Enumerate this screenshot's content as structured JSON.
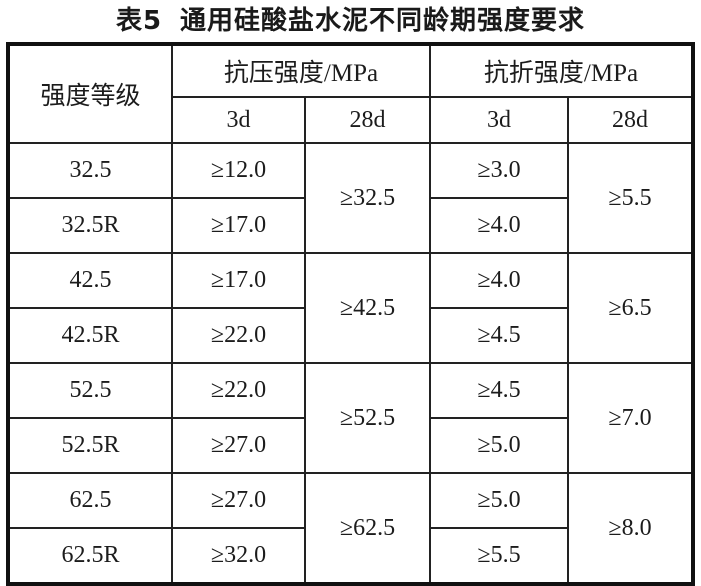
{
  "title": {
    "label": "表5",
    "text": "通用硅酸盐水泥不同龄期强度要求"
  },
  "table": {
    "header": {
      "grade": "强度等级",
      "compressive": "抗压强度/MPa",
      "flexural": "抗折强度/MPa",
      "comp_3d": "3d",
      "comp_28d": "28d",
      "flex_3d": "3d",
      "flex_28d": "28d"
    },
    "groups": [
      {
        "grade_a": "32.5",
        "grade_b": "32.5R",
        "comp3d_a": "≥12.0",
        "comp3d_b": "≥17.0",
        "comp28d": "≥32.5",
        "flex3d_a": "≥3.0",
        "flex3d_b": "≥4.0",
        "flex28d": "≥5.5"
      },
      {
        "grade_a": "42.5",
        "grade_b": "42.5R",
        "comp3d_a": "≥17.0",
        "comp3d_b": "≥22.0",
        "comp28d": "≥42.5",
        "flex3d_a": "≥4.0",
        "flex3d_b": "≥4.5",
        "flex28d": "≥6.5"
      },
      {
        "grade_a": "52.5",
        "grade_b": "52.5R",
        "comp3d_a": "≥22.0",
        "comp3d_b": "≥27.0",
        "comp28d": "≥52.5",
        "flex3d_a": "≥4.5",
        "flex3d_b": "≥5.0",
        "flex28d": "≥7.0"
      },
      {
        "grade_a": "62.5",
        "grade_b": "62.5R",
        "comp3d_a": "≥27.0",
        "comp3d_b": "≥32.0",
        "comp28d": "≥62.5",
        "flex3d_a": "≥5.0",
        "flex3d_b": "≥5.5",
        "flex28d": "≥8.0"
      }
    ]
  },
  "chart_data": {
    "type": "table",
    "title": "表5 通用硅酸盐水泥不同龄期强度要求",
    "columns": [
      "强度等级",
      "抗压强度/MPa 3d",
      "抗压强度/MPa 28d",
      "抗折强度/MPa 3d",
      "抗折强度/MPa 28d"
    ],
    "rows": [
      [
        "32.5",
        "≥12.0",
        "≥32.5",
        "≥3.0",
        "≥5.5"
      ],
      [
        "32.5R",
        "≥17.0",
        "≥32.5",
        "≥4.0",
        "≥5.5"
      ],
      [
        "42.5",
        "≥17.0",
        "≥42.5",
        "≥4.0",
        "≥6.5"
      ],
      [
        "42.5R",
        "≥22.0",
        "≥42.5",
        "≥4.5",
        "≥6.5"
      ],
      [
        "52.5",
        "≥22.0",
        "≥52.5",
        "≥4.5",
        "≥7.0"
      ],
      [
        "52.5R",
        "≥27.0",
        "≥52.5",
        "≥5.0",
        "≥7.0"
      ],
      [
        "62.5",
        "≥27.0",
        "≥62.5",
        "≥5.0",
        "≥8.0"
      ],
      [
        "62.5R",
        "≥32.0",
        "≥62.5",
        "≥5.5",
        "≥8.0"
      ]
    ]
  }
}
